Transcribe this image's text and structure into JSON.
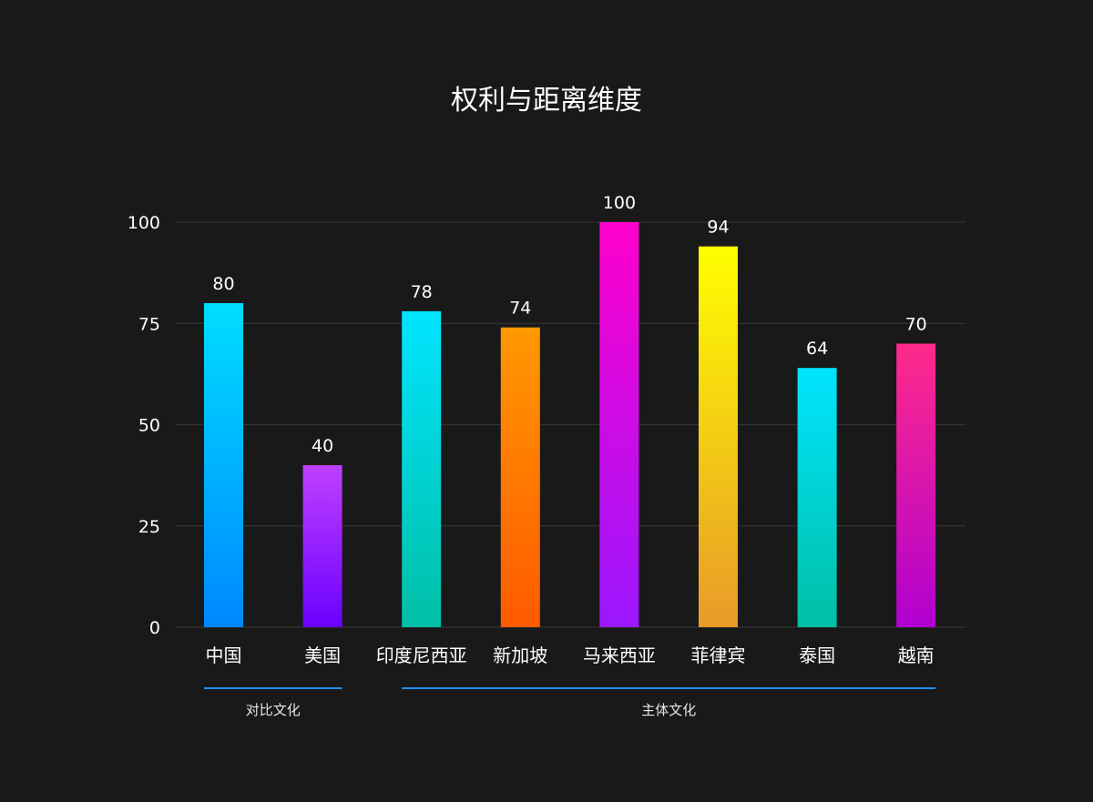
{
  "chart_data": {
    "type": "bar",
    "title": "权利与距离维度",
    "xlabel": "",
    "ylabel": "",
    "ylim": [
      0,
      100
    ],
    "yticks": [
      "0",
      "25",
      "50",
      "75",
      "100"
    ],
    "grid": true,
    "categories": [
      "中国",
      "美国",
      "印度尼西亚",
      "新加坡",
      "马来西亚",
      "菲律宾",
      "泰国",
      "越南"
    ],
    "values": [
      80,
      40,
      78,
      74,
      100,
      94,
      64,
      70
    ],
    "bar_colors": [
      [
        "#00DDFF",
        "#0088FF"
      ],
      [
        "#C040FF",
        "#6A00FF"
      ],
      [
        "#00E4FF",
        "#00BFA5"
      ],
      [
        "#FF9800",
        "#FF5A00"
      ],
      [
        "#FF00CC",
        "#9B17FF"
      ],
      [
        "#FFFF00",
        "#E89A2A"
      ],
      [
        "#00E4FF",
        "#00BFA5"
      ],
      [
        "#FF2A8A",
        "#B000D0"
      ]
    ],
    "groups": [
      {
        "label": "对比文化",
        "start": 0,
        "end": 1,
        "color": "#1E90FF"
      },
      {
        "label": "主体文化",
        "start": 2,
        "end": 7,
        "color": "#1E90FF"
      }
    ],
    "colors": {
      "background": "#191919",
      "gridline": "#333333",
      "text": "#FFFFFF"
    }
  }
}
